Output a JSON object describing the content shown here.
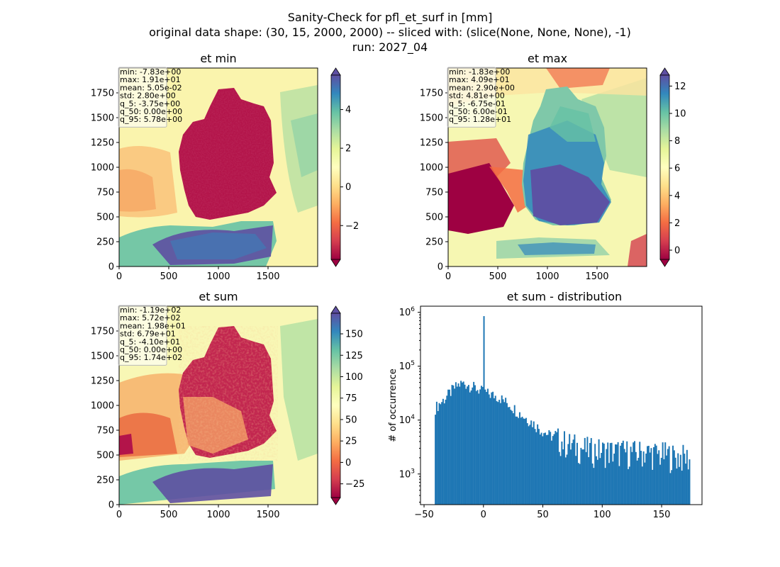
{
  "figure": {
    "title_lines": [
      "Sanity-Check for pfl_et_surf in [mm]",
      "original data shape: (30, 15, 2000, 2000) -- sliced with: (slice(None, None, None), -1)",
      "run: 2027_04"
    ]
  },
  "chart_data": [
    {
      "type": "heatmap",
      "title": "et min",
      "xticks": [
        0,
        500,
        1000,
        1500
      ],
      "yticks": [
        0,
        250,
        500,
        750,
        1000,
        1250,
        1500,
        1750
      ],
      "xlim": [
        0,
        2000
      ],
      "ylim": [
        0,
        2000
      ],
      "colorbar": {
        "ticks": [
          -2,
          0,
          2,
          4
        ],
        "tick_labels": [
          "−2",
          "0",
          "2",
          "4"
        ],
        "range": [
          -3.75,
          5.78
        ],
        "colormap": "Spectral"
      },
      "stats_lines": [
        "min: -7.83e+00",
        "max: 1.91e+01",
        "mean: 5.05e-02",
        "std: 2.80e+00",
        "q_5: -3.75e+00",
        "q_50: 0.00e+00",
        "q_95: 5.78e+00"
      ]
    },
    {
      "type": "heatmap",
      "title": "et max",
      "xticks": [
        0,
        500,
        1000,
        1500
      ],
      "yticks": [
        0,
        250,
        500,
        750,
        1000,
        1250,
        1500,
        1750
      ],
      "xlim": [
        0,
        2000
      ],
      "ylim": [
        0,
        2000
      ],
      "colorbar": {
        "ticks": [
          0,
          2,
          4,
          6,
          8,
          10,
          12
        ],
        "tick_labels": [
          "0",
          "2",
          "4",
          "6",
          "8",
          "10",
          "12"
        ],
        "range": [
          -0.675,
          12.8
        ],
        "colormap": "Spectral"
      },
      "stats_lines": [
        "min: -1.83e+00",
        "max: 4.09e+01",
        "mean: 2.90e+00",
        "std: 4.81e+00",
        "q_5: -6.75e-01",
        "q_50: 6.00e-01",
        "q_95: 1.28e+01"
      ]
    },
    {
      "type": "heatmap",
      "title": "et sum",
      "xticks": [
        0,
        500,
        1000,
        1500
      ],
      "yticks": [
        0,
        250,
        500,
        750,
        1000,
        1250,
        1500,
        1750
      ],
      "xlim": [
        0,
        2000
      ],
      "ylim": [
        0,
        2000
      ],
      "colorbar": {
        "ticks": [
          -25,
          0,
          25,
          50,
          75,
          100,
          125,
          150
        ],
        "tick_labels": [
          "−25",
          "0",
          "25",
          "50",
          "75",
          "100",
          "125",
          "150"
        ],
        "range": [
          -41,
          174
        ],
        "colormap": "Spectral"
      },
      "stats_lines": [
        "min: -1.19e+02",
        "max: 5.72e+02",
        "mean: 1.98e+01",
        "std: 6.79e+01",
        "q_5: -4.10e+01",
        "q_50: 0.00e+00",
        "q_95: 1.74e+02"
      ]
    },
    {
      "type": "bar",
      "title": "et sum - distribution",
      "ylabel": "# of occurrence",
      "yscale": "log",
      "xticks": [
        -50,
        0,
        50,
        100,
        150
      ],
      "xtick_labels": [
        "−50",
        "0",
        "50",
        "100",
        "150"
      ],
      "yticks": [
        1000,
        10000,
        100000,
        1000000
      ],
      "ytick_labels": [
        "10^3",
        "10^4",
        "10^5",
        "10^6"
      ],
      "xlim": [
        -53,
        184
      ],
      "ylim": [
        270,
        1300000
      ],
      "bin_edges_range": [
        -41,
        174
      ],
      "spike": {
        "x": 0,
        "count": 850000
      },
      "color": "#1f77b4",
      "envelope": [
        [
          -41,
          17000
        ],
        [
          -38,
          20000
        ],
        [
          -34,
          24000
        ],
        [
          -30,
          30000
        ],
        [
          -26,
          38000
        ],
        [
          -22,
          45000
        ],
        [
          -18,
          50000
        ],
        [
          -14,
          48000
        ],
        [
          -10,
          44000
        ],
        [
          -6,
          40000
        ],
        [
          -2,
          36000
        ],
        [
          2,
          33000
        ],
        [
          6,
          31000
        ],
        [
          10,
          29000
        ],
        [
          14,
          27000
        ],
        [
          18,
          23000
        ],
        [
          22,
          20000
        ],
        [
          26,
          17000
        ],
        [
          30,
          14000
        ],
        [
          34,
          12000
        ],
        [
          38,
          10500
        ],
        [
          42,
          9000
        ],
        [
          46,
          7500
        ],
        [
          50,
          6500
        ],
        [
          55,
          5500
        ],
        [
          60,
          5000
        ],
        [
          65,
          4500
        ],
        [
          70,
          4000
        ],
        [
          75,
          3700
        ],
        [
          80,
          3400
        ],
        [
          85,
          3200
        ],
        [
          90,
          3000
        ],
        [
          95,
          3000
        ],
        [
          100,
          2900
        ],
        [
          105,
          2900
        ],
        [
          110,
          2800
        ],
        [
          115,
          2800
        ],
        [
          120,
          2800
        ],
        [
          125,
          2700
        ],
        [
          130,
          2700
        ],
        [
          135,
          2800
        ],
        [
          140,
          2700
        ],
        [
          145,
          2600
        ],
        [
          150,
          2500
        ],
        [
          155,
          2500
        ],
        [
          160,
          2300
        ],
        [
          165,
          2300
        ],
        [
          170,
          2200
        ],
        [
          174,
          2100
        ]
      ]
    }
  ]
}
